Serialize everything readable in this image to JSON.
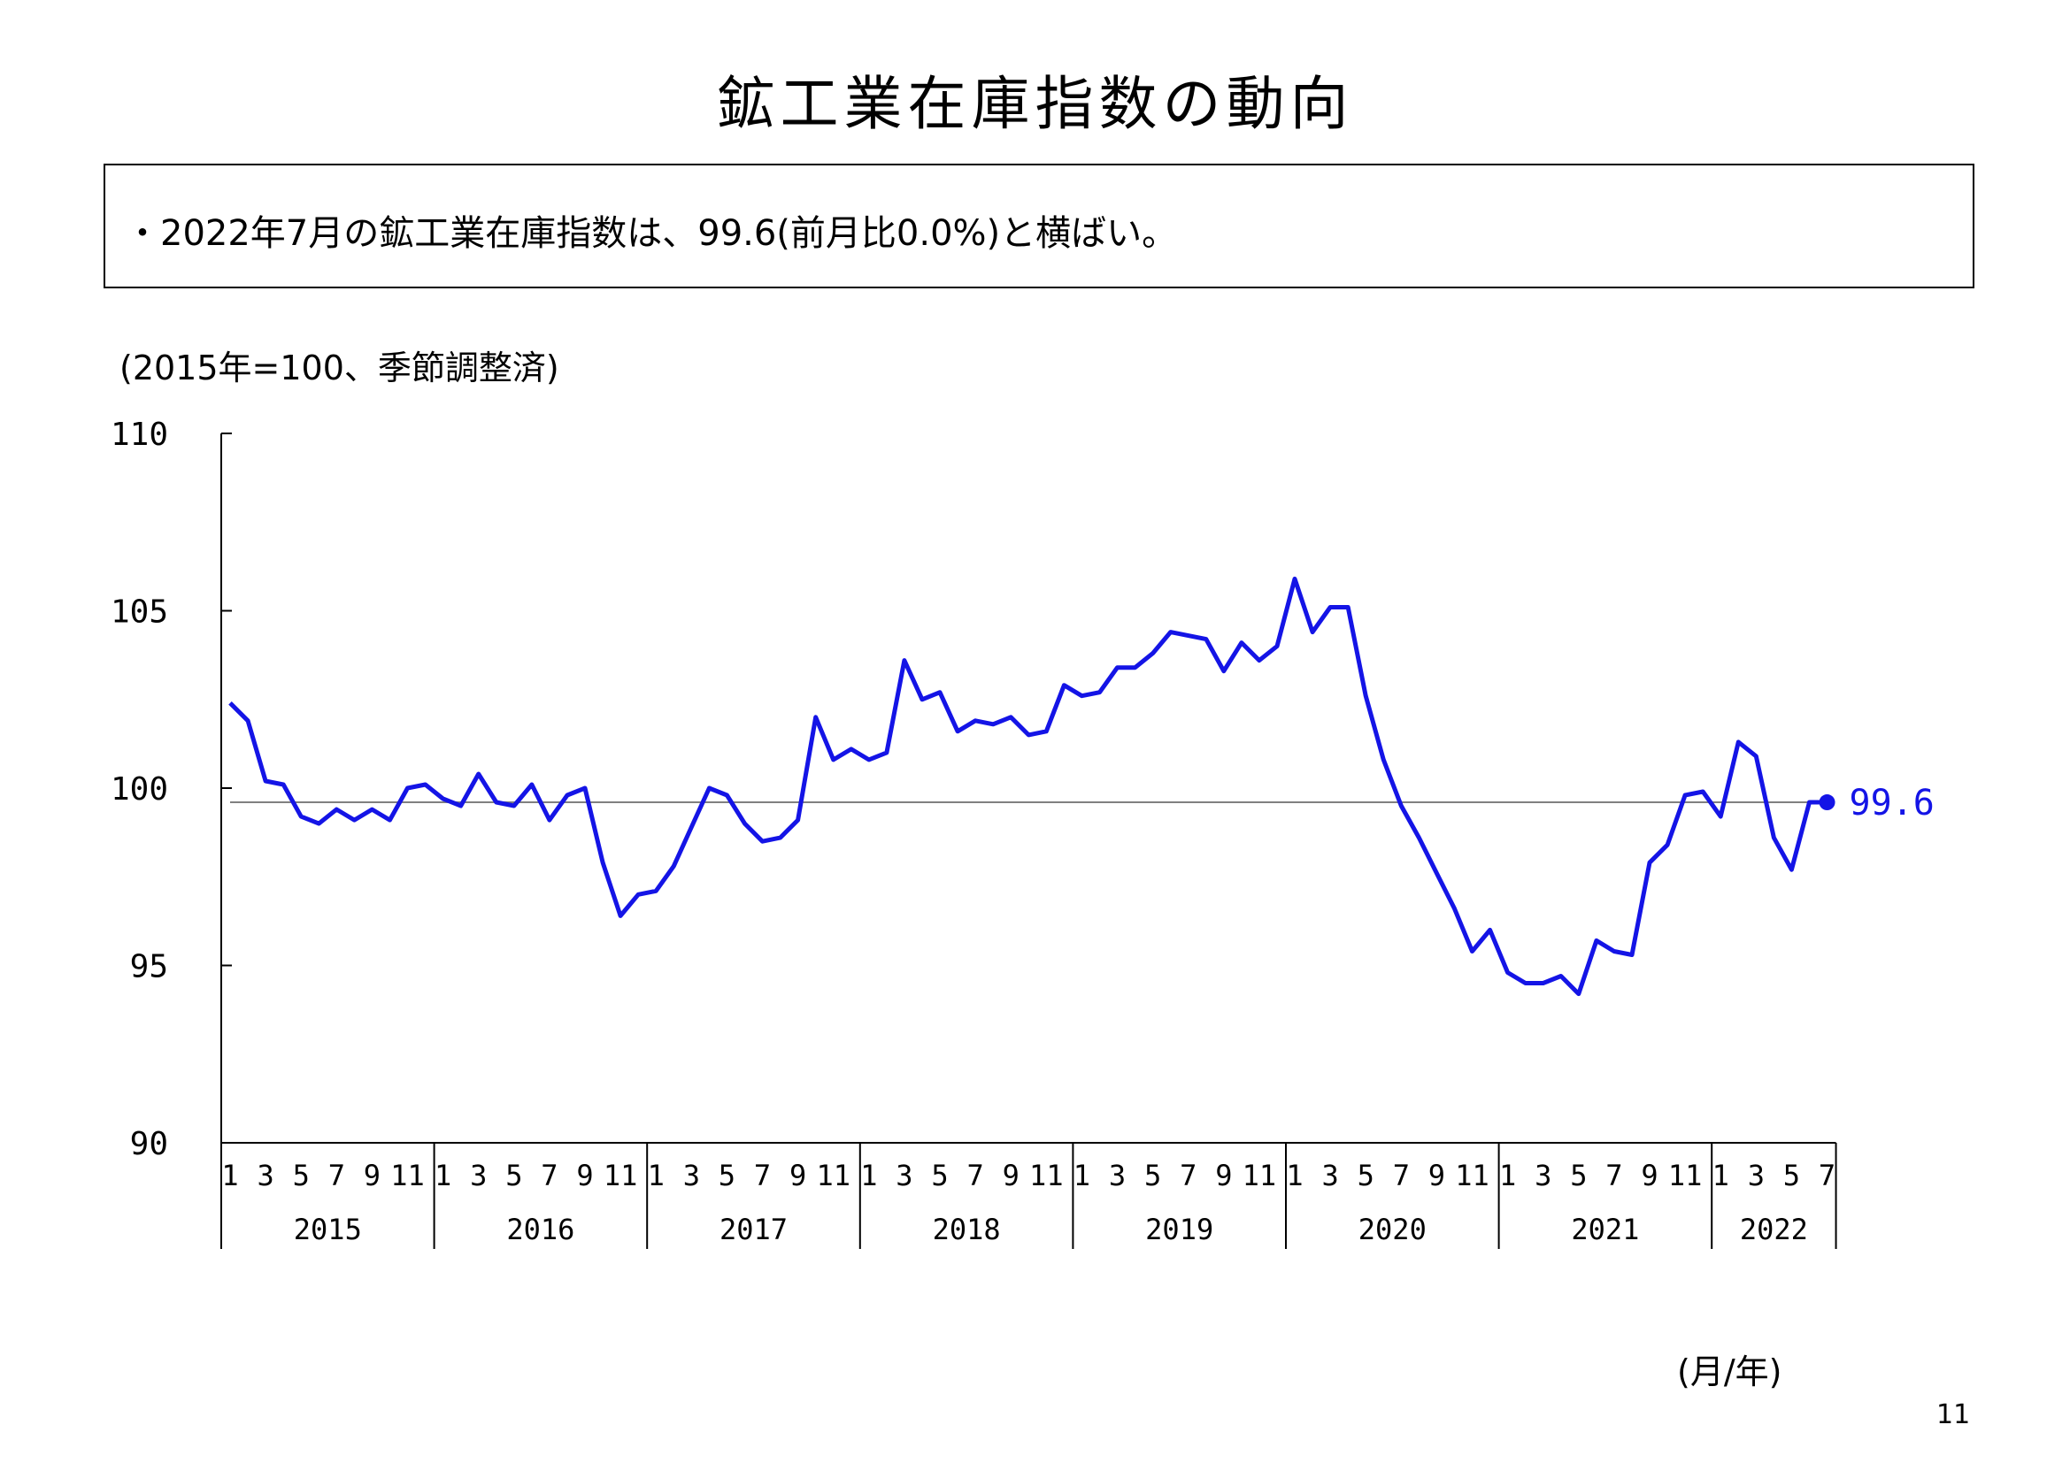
{
  "page": {
    "title": "鉱工業在庫指数の動向",
    "summary": "・2022年7月の鉱工業在庫指数は、99.6(前月比0.0%)と横ばい。",
    "unit_note": "(2015年=100、季節調整済)",
    "axis_footer": "(月/年)",
    "page_number": "11"
  },
  "colors": {
    "series": "#1414e6",
    "reference_line": "#808080",
    "axis": "#000000"
  },
  "chart_data": {
    "type": "line",
    "title": "鉱工業在庫指数の動向",
    "ylabel": "(2015年=100、季節調整済)",
    "xlabel": "(月/年)",
    "ylim": [
      90,
      110
    ],
    "yticks": [
      90,
      95,
      100,
      105,
      110
    ],
    "ytick_labels": [
      "90",
      "95",
      "100",
      "105",
      "110"
    ],
    "grid": false,
    "years": [
      "2015",
      "2016",
      "2017",
      "2018",
      "2019",
      "2020",
      "2021",
      "2022"
    ],
    "month_ticks": [
      "1",
      "3",
      "5",
      "7",
      "9",
      "11"
    ],
    "month_ticks_last_year": [
      "1",
      "3",
      "5",
      "7"
    ],
    "reference_line": 99.6,
    "end_label": "99.6",
    "series": [
      {
        "values": [
          102.4,
          101.9,
          100.2,
          100.1,
          99.2,
          99.0,
          99.4,
          99.1,
          99.4,
          99.1,
          100.0,
          100.1,
          99.7,
          99.5,
          100.4,
          99.6,
          99.5,
          100.1,
          99.1,
          99.8,
          100.0,
          97.9,
          96.4,
          97.0,
          97.1,
          97.8,
          98.9,
          100.0,
          99.8,
          99.0,
          98.5,
          98.6,
          99.1,
          102.0,
          100.8,
          101.1,
          100.8,
          101.0,
          103.6,
          102.5,
          102.7,
          101.6,
          101.9,
          101.8,
          102.0,
          101.5,
          101.6,
          102.9,
          102.6,
          102.7,
          103.4,
          103.4,
          103.8,
          104.4,
          104.3,
          104.2,
          103.3,
          104.1,
          103.6,
          104.0,
          105.9,
          104.4,
          105.1,
          105.1,
          102.6,
          100.8,
          99.5,
          98.6,
          97.6,
          96.6,
          95.4,
          96.0,
          94.8,
          94.5,
          94.5,
          94.7,
          94.2,
          95.7,
          95.4,
          95.3,
          97.9,
          98.4,
          99.8,
          99.9,
          99.2,
          101.3,
          100.9,
          98.6,
          97.7,
          99.6,
          99.6
        ]
      }
    ]
  }
}
